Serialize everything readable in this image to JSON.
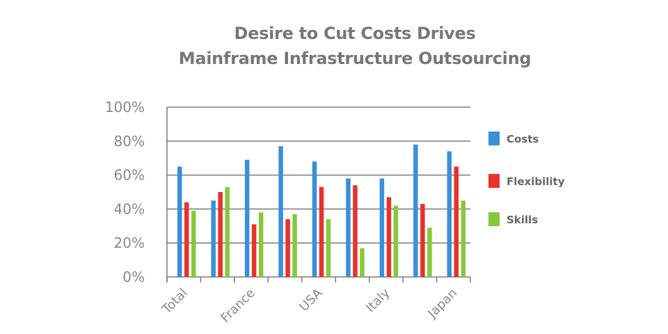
{
  "chart_data": {
    "type": "bar",
    "title_lines": [
      "Desire to Cut Costs Drives",
      "Mainframe Infrastructure Outsourcing"
    ],
    "xlabel": "",
    "ylabel": "",
    "ylim": [
      0,
      100
    ],
    "yticks": [
      "0%",
      "20%",
      "40%",
      "60%",
      "80%",
      "100%"
    ],
    "ytick_values": [
      0,
      20,
      40,
      60,
      80,
      100
    ],
    "grid": true,
    "legend_position": "right",
    "categories": [
      "Total",
      "",
      "France",
      "",
      "USA",
      "",
      "Italy",
      "",
      "Japan"
    ],
    "series": [
      {
        "name": "Costs",
        "color": "#3b8fd9",
        "values": [
          65,
          45,
          69,
          77,
          68,
          58,
          58,
          78,
          74
        ]
      },
      {
        "name": "Flexibility",
        "color": "#e8322a",
        "values": [
          44,
          50,
          31,
          34,
          53,
          54,
          47,
          43,
          65
        ]
      },
      {
        "name": "Skills",
        "color": "#86c93a",
        "values": [
          39,
          53,
          38,
          37,
          34,
          17,
          42,
          29,
          45
        ]
      }
    ]
  }
}
